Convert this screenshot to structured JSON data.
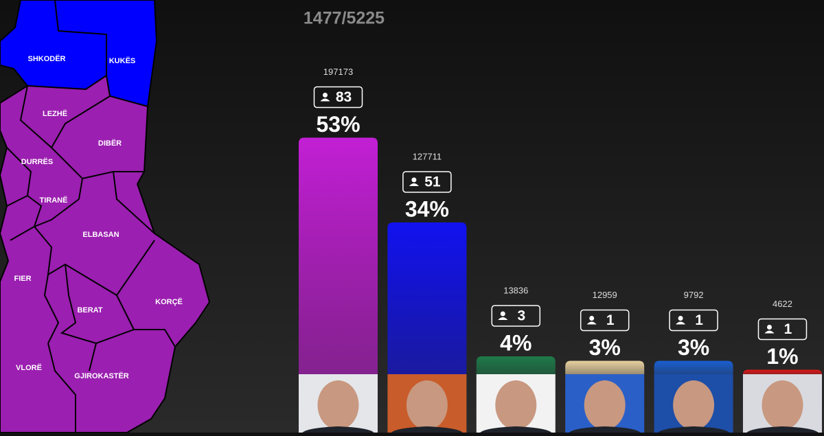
{
  "chart_data": {
    "type": "bar",
    "title": "1477/5225",
    "values": [
      53,
      34,
      4,
      3,
      3,
      1
    ],
    "value_labels": [
      "53%",
      "34%",
      "4%",
      "3%",
      "3%",
      "1%"
    ],
    "votes": [
      197173,
      127711,
      13836,
      12959,
      9792,
      4622
    ],
    "seats": [
      83,
      51,
      3,
      1,
      1,
      1
    ],
    "colors": [
      "#c21fd4",
      "#1212f0",
      "#1e7a4a",
      "#e8d0a0",
      "#1a5fd0",
      "#e01818"
    ]
  },
  "map": {
    "regions": [
      {
        "name": "SHKODËR",
        "color": "#0000ff"
      },
      {
        "name": "KUKËS",
        "color": "#0000ff"
      },
      {
        "name": "LEZHË",
        "color": "#9b1fb0"
      },
      {
        "name": "DIBËR",
        "color": "#9b1fb0"
      },
      {
        "name": "DURRËS",
        "color": "#9b1fb0"
      },
      {
        "name": "TIRANË",
        "color": "#9b1fb0"
      },
      {
        "name": "ELBASAN",
        "color": "#9b1fb0"
      },
      {
        "name": "FIER",
        "color": "#9b1fb0"
      },
      {
        "name": "BERAT",
        "color": "#9b1fb0"
      },
      {
        "name": "KORÇË",
        "color": "#9b1fb0"
      },
      {
        "name": "VLORË",
        "color": "#9b1fb0"
      },
      {
        "name": "GJIROKASTËR",
        "color": "#9b1fb0"
      }
    ]
  }
}
